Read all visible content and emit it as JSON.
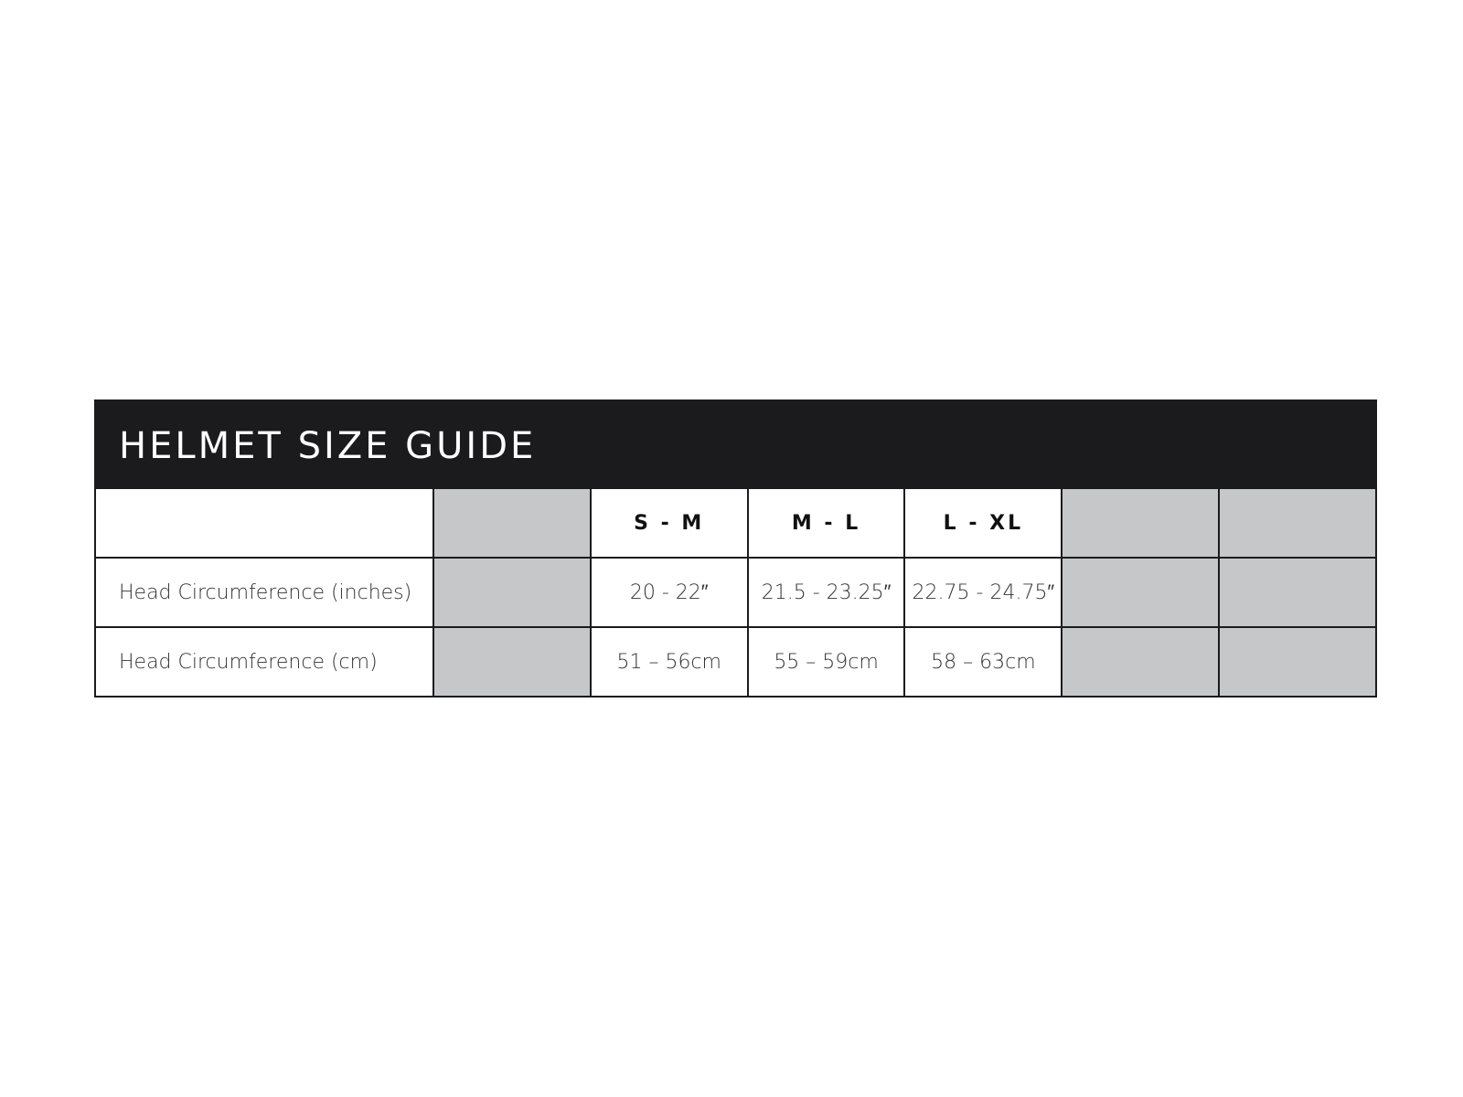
{
  "title": "HELMET SIZE GUIDE",
  "colors": {
    "header_bg": "#1b1a1d",
    "empty_cell": "#c6c7c8"
  },
  "columns": [
    "",
    "",
    "S - M",
    "M - L",
    "L - XL",
    "",
    ""
  ],
  "rows": [
    {
      "label": "Head Circumference (inches)",
      "values": [
        "",
        "20 - 22″",
        "21.5 - 23.25″",
        "22.75 - 24.75″",
        "",
        ""
      ]
    },
    {
      "label": "Head Circumference (cm)",
      "values": [
        "",
        "51 – 56cm",
        "55 – 59cm",
        "58 – 63cm",
        "",
        ""
      ]
    }
  ]
}
